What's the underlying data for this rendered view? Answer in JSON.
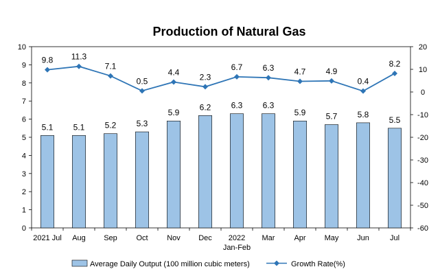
{
  "chart_data": {
    "type": "bar",
    "title": "Production of Natural Gas",
    "categories": [
      "2021 Jul",
      "Aug",
      "Sep",
      "Oct",
      "Nov",
      "Dec",
      "2022",
      "Mar",
      "Apr",
      "May",
      "Jun",
      "Jul"
    ],
    "category_sublabels": [
      "",
      "",
      "",
      "",
      "",
      "",
      "Jan-Feb",
      "",
      "",
      "",
      "",
      ""
    ],
    "series": [
      {
        "name": "Average Daily Output (100 million cubic meters)",
        "type": "bar",
        "axis": "left",
        "values": [
          5.1,
          5.1,
          5.2,
          5.3,
          5.9,
          6.2,
          6.3,
          6.3,
          5.9,
          5.7,
          5.8,
          5.5
        ],
        "labels": [
          "5.1",
          "5.1",
          "5.2",
          "5.3",
          "5.9",
          "6.2",
          "6.3",
          "6.3",
          "5.9",
          "5.7",
          "5.8",
          "5.5"
        ],
        "color": "#9dc3e6"
      },
      {
        "name": "Growth Rate(%)",
        "type": "line",
        "axis": "right",
        "values": [
          9.8,
          11.3,
          7.1,
          0.5,
          4.4,
          2.3,
          6.7,
          6.3,
          4.7,
          4.9,
          0.4,
          8.2
        ],
        "labels": [
          "9.8",
          "11.3",
          "7.1",
          "0.5",
          "4.4",
          "2.3",
          "6.7",
          "6.3",
          "4.7",
          "4.9",
          "0.4",
          "8.2"
        ],
        "color": "#2e75b6"
      }
    ],
    "ylim_left": [
      0,
      10
    ],
    "yticks_left": [
      "0",
      "1",
      "2",
      "3",
      "4",
      "5",
      "6",
      "7",
      "8",
      "9",
      "10"
    ],
    "ylim_right": [
      -60,
      20
    ],
    "yticks_right": [
      "-60",
      "-50",
      "-40",
      "-30",
      "-20",
      "-10",
      "0",
      "10",
      "20"
    ],
    "grid": false,
    "legend_position": "bottom"
  }
}
